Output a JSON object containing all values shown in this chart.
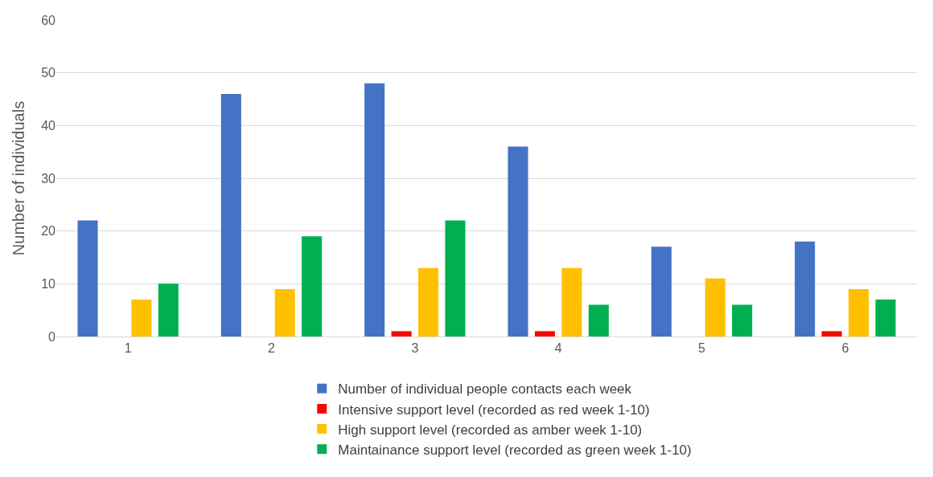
{
  "chart_data": {
    "type": "bar",
    "ylabel": "Number of individuals",
    "categories": [
      "1",
      "2",
      "3",
      "4",
      "5",
      "6"
    ],
    "series": [
      {
        "name": "Number of individual people contacts each week",
        "color": "#4472c4",
        "values": [
          22,
          46,
          48,
          36,
          17,
          18
        ]
      },
      {
        "name": "Intensive support level (recorded as red week 1-10)",
        "color": "#ff0000",
        "values": [
          null,
          null,
          1,
          1,
          null,
          1
        ]
      },
      {
        "name": "High support level (recorded as amber week 1-10)",
        "color": "#ffc000",
        "values": [
          7,
          9,
          13,
          13,
          11,
          9
        ]
      },
      {
        "name": "Maintainance support level (recorded as green week 1-10)",
        "color": "#00b050",
        "values": [
          10,
          19,
          22,
          6,
          6,
          7
        ]
      }
    ],
    "ylim": [
      0,
      60
    ],
    "yticks": [
      0,
      10,
      20,
      30,
      40,
      50,
      60
    ],
    "grid": "y",
    "legend": "bottom"
  }
}
